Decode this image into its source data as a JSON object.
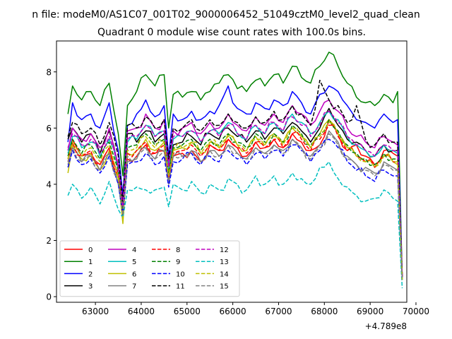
{
  "chart_data": {
    "type": "line",
    "suptitle": "n file: modeM0/AS1C07_001T02_9000006452_51049cztM0_level2_quad_clean",
    "title": "Quadrant 0 module wise count rates with 100.0s bins.",
    "xlabel": "",
    "ylabel": "",
    "x_offset_label": "+4.789e8",
    "xlim": [
      62150,
      69800
    ],
    "ylim": [
      -0.2,
      9.1
    ],
    "xticks": [
      63000,
      64000,
      65000,
      66000,
      67000,
      68000,
      69000,
      70000
    ],
    "yticks": [
      0,
      2,
      4,
      6,
      8
    ],
    "grid": false,
    "legend_position": "lower-left",
    "legend_columns": 4,
    "x_start": 62400,
    "x_step": 100,
    "x_end": 69700,
    "anchor_x": [
      62400,
      62500,
      62700,
      62900,
      63100,
      63300,
      63500,
      63600,
      63700,
      63900,
      64100,
      64300,
      64500,
      64600,
      64700,
      64900,
      65100,
      65300,
      65500,
      65700,
      65900,
      66100,
      66300,
      66500,
      66700,
      66900,
      67100,
      67300,
      67500,
      67700,
      67900,
      68100,
      68300,
      68500,
      68700,
      68900,
      69100,
      69300,
      69500,
      69600,
      69700
    ],
    "series": [
      {
        "name": "0",
        "color": "#ff0000",
        "dashed": false,
        "anchors": [
          4.9,
          5.6,
          5.0,
          5.1,
          4.7,
          5.3,
          4.4,
          3.1,
          4.9,
          5.0,
          5.4,
          5.1,
          5.2,
          4.3,
          5.0,
          5.1,
          5.2,
          4.8,
          5.4,
          5.2,
          5.6,
          5.3,
          5.0,
          5.5,
          5.3,
          5.6,
          5.3,
          5.8,
          5.5,
          5.2,
          5.4,
          6.3,
          5.8,
          5.2,
          5.4,
          5.0,
          4.7,
          5.2,
          5.1,
          5.0,
          0.8
        ]
      },
      {
        "name": "1",
        "color": "#008000",
        "dashed": false,
        "anchors": [
          6.5,
          7.5,
          7.0,
          7.3,
          6.8,
          7.6,
          5.8,
          4.3,
          6.8,
          7.3,
          7.9,
          7.5,
          7.9,
          6.0,
          7.2,
          7.1,
          7.3,
          7.0,
          7.3,
          7.6,
          7.9,
          7.4,
          7.3,
          7.7,
          7.5,
          7.9,
          7.6,
          8.2,
          7.8,
          7.6,
          8.2,
          8.7,
          8.2,
          7.6,
          7.1,
          6.9,
          6.8,
          7.2,
          6.9,
          7.3,
          0.7
        ]
      },
      {
        "name": "2",
        "color": "#0000ff",
        "dashed": false,
        "anchors": [
          5.5,
          6.9,
          6.3,
          6.5,
          6.0,
          6.9,
          5.2,
          3.6,
          6.1,
          6.5,
          7.0,
          6.4,
          6.8,
          5.0,
          6.5,
          6.3,
          6.6,
          6.3,
          6.6,
          6.8,
          7.5,
          6.7,
          6.5,
          6.9,
          6.7,
          7.0,
          6.8,
          7.3,
          6.9,
          6.5,
          7.2,
          7.5,
          7.3,
          6.8,
          6.3,
          6.2,
          6.0,
          6.5,
          6.2,
          6.3,
          0.7
        ]
      },
      {
        "name": "3",
        "color": "#000000",
        "dashed": false,
        "anchors": [
          5.6,
          6.0,
          5.5,
          5.8,
          5.1,
          5.9,
          4.6,
          3.2,
          5.8,
          5.5,
          5.9,
          5.5,
          5.8,
          4.4,
          5.4,
          5.5,
          5.7,
          5.4,
          5.8,
          5.6,
          6.0,
          5.7,
          5.5,
          5.9,
          5.6,
          6.0,
          5.8,
          6.2,
          5.9,
          5.5,
          6.0,
          6.7,
          6.1,
          5.6,
          5.5,
          5.2,
          5.0,
          5.4,
          5.2,
          5.2,
          0.7
        ]
      },
      {
        "name": "4",
        "color": "#bf00bf",
        "dashed": false,
        "anchors": [
          5.2,
          6.0,
          5.6,
          5.8,
          5.3,
          6.0,
          4.7,
          3.3,
          5.9,
          6.0,
          6.5,
          6.0,
          6.3,
          4.7,
          5.9,
          6.0,
          6.2,
          5.8,
          6.2,
          6.0,
          6.5,
          6.1,
          5.9,
          6.4,
          6.1,
          6.5,
          6.2,
          6.8,
          6.5,
          6.1,
          6.6,
          7.0,
          6.6,
          6.0,
          5.7,
          5.5,
          5.3,
          5.7,
          5.5,
          5.4,
          0.7
        ]
      },
      {
        "name": "5",
        "color": "#00bfbf",
        "dashed": false,
        "anchors": [
          5.1,
          5.7,
          5.3,
          5.5,
          5.0,
          5.6,
          4.5,
          3.0,
          5.5,
          5.6,
          6.1,
          5.7,
          5.9,
          4.5,
          5.6,
          5.7,
          5.9,
          5.5,
          5.9,
          5.8,
          6.2,
          5.8,
          5.6,
          6.1,
          5.8,
          6.2,
          5.9,
          6.5,
          6.2,
          5.8,
          6.2,
          6.6,
          6.3,
          5.7,
          5.4,
          5.2,
          5.0,
          5.4,
          5.2,
          5.1,
          0.6
        ]
      },
      {
        "name": "6",
        "color": "#bfbf00",
        "dashed": false,
        "anchors": [
          4.4,
          5.4,
          4.9,
          5.1,
          4.5,
          5.2,
          4.2,
          2.6,
          5.1,
          5.2,
          5.6,
          5.2,
          5.5,
          4.2,
          5.2,
          5.3,
          5.5,
          5.1,
          5.5,
          5.3,
          5.8,
          5.4,
          5.2,
          5.7,
          5.4,
          5.8,
          5.5,
          6.0,
          5.7,
          5.3,
          5.8,
          6.3,
          5.8,
          5.3,
          5.0,
          4.8,
          4.6,
          5.0,
          4.8,
          4.7,
          0.6
        ]
      },
      {
        "name": "7",
        "color": "#808080",
        "dashed": false,
        "anchors": [
          4.7,
          5.3,
          4.8,
          5.0,
          4.5,
          5.1,
          4.0,
          2.9,
          4.8,
          4.9,
          5.3,
          4.9,
          5.2,
          4.0,
          5.0,
          5.0,
          5.2,
          4.8,
          5.2,
          5.0,
          5.4,
          5.1,
          4.9,
          5.3,
          5.1,
          5.4,
          5.2,
          5.6,
          5.3,
          5.0,
          5.4,
          5.9,
          5.5,
          5.0,
          4.7,
          4.6,
          4.4,
          4.8,
          4.6,
          4.5,
          0.6
        ]
      },
      {
        "name": "8",
        "color": "#ff0000",
        "dashed": true,
        "anchors": [
          4.8,
          5.5,
          5.0,
          5.2,
          4.7,
          5.3,
          4.3,
          3.0,
          5.1,
          5.2,
          5.5,
          5.1,
          5.4,
          4.2,
          5.1,
          5.2,
          5.4,
          5.0,
          5.4,
          5.2,
          5.6,
          5.3,
          5.1,
          5.5,
          5.3,
          5.6,
          5.3,
          5.8,
          5.6,
          5.2,
          5.6,
          6.1,
          5.7,
          5.2,
          5.0,
          4.8,
          4.6,
          5.0,
          4.8,
          4.8,
          0.7
        ]
      },
      {
        "name": "9",
        "color": "#008000",
        "dashed": true,
        "anchors": [
          5.0,
          5.6,
          5.1,
          5.4,
          4.9,
          5.5,
          4.5,
          3.1,
          5.3,
          5.4,
          5.8,
          5.4,
          5.6,
          4.4,
          5.3,
          5.4,
          5.6,
          5.2,
          5.6,
          5.4,
          5.8,
          5.5,
          5.3,
          5.8,
          5.5,
          5.8,
          5.5,
          6.1,
          5.8,
          5.4,
          5.8,
          6.3,
          5.9,
          5.4,
          5.1,
          4.9,
          4.7,
          5.1,
          4.9,
          4.9,
          0.7
        ]
      },
      {
        "name": "10",
        "color": "#0000ff",
        "dashed": true,
        "anchors": [
          4.6,
          5.2,
          4.7,
          4.9,
          4.4,
          5.0,
          4.0,
          2.9,
          4.7,
          4.8,
          5.1,
          4.7,
          5.0,
          3.9,
          4.8,
          4.9,
          5.1,
          4.7,
          5.0,
          4.8,
          5.2,
          4.9,
          4.7,
          5.1,
          4.9,
          5.2,
          5.0,
          5.4,
          5.2,
          4.8,
          5.2,
          5.6,
          5.3,
          4.8,
          4.5,
          4.3,
          4.1,
          4.5,
          4.3,
          4.3,
          0.6
        ]
      },
      {
        "name": "11",
        "color": "#000000",
        "dashed": true,
        "anchors": [
          5.7,
          6.2,
          5.8,
          6.0,
          5.4,
          6.2,
          5.0,
          3.4,
          6.1,
          6.0,
          6.4,
          6.0,
          6.3,
          4.9,
          6.0,
          6.0,
          6.3,
          5.9,
          6.3,
          6.1,
          6.5,
          6.2,
          6.0,
          6.4,
          6.2,
          6.6,
          6.3,
          6.8,
          6.5,
          6.1,
          7.7,
          7.0,
          6.8,
          6.2,
          6.8,
          5.6,
          5.4,
          5.8,
          5.5,
          5.5,
          0.7
        ]
      },
      {
        "name": "12",
        "color": "#bf00bf",
        "dashed": true,
        "anchors": [
          5.3,
          5.8,
          5.4,
          5.6,
          5.1,
          5.7,
          4.6,
          3.2,
          5.6,
          5.7,
          6.1,
          5.7,
          5.9,
          4.6,
          5.7,
          5.7,
          5.9,
          5.5,
          5.9,
          5.7,
          6.1,
          5.8,
          5.6,
          6.1,
          5.8,
          6.2,
          5.9,
          6.4,
          6.1,
          5.7,
          6.1,
          6.6,
          6.2,
          5.7,
          5.4,
          5.2,
          5.0,
          5.4,
          5.2,
          5.2,
          0.7
        ]
      },
      {
        "name": "13",
        "color": "#00bfbf",
        "dashed": true,
        "anchors": [
          3.6,
          4.0,
          3.5,
          3.9,
          3.3,
          4.1,
          3.1,
          2.8,
          3.8,
          3.9,
          3.8,
          3.8,
          3.9,
          3.2,
          4.0,
          3.8,
          4.1,
          3.7,
          4.0,
          3.8,
          4.2,
          4.0,
          3.8,
          4.3,
          4.0,
          4.3,
          4.0,
          4.4,
          4.2,
          4.0,
          4.6,
          4.8,
          4.2,
          3.9,
          3.6,
          3.4,
          3.5,
          3.8,
          3.5,
          3.4,
          0.3
        ]
      },
      {
        "name": "14",
        "color": "#bfbf00",
        "dashed": true,
        "anchors": [
          4.9,
          5.5,
          5.0,
          5.3,
          4.8,
          5.4,
          4.3,
          2.7,
          5.2,
          5.3,
          5.7,
          5.3,
          5.5,
          4.3,
          5.2,
          5.3,
          5.5,
          5.1,
          5.5,
          5.3,
          5.7,
          5.4,
          5.2,
          5.6,
          5.4,
          5.7,
          5.4,
          6.0,
          5.7,
          5.3,
          5.7,
          6.2,
          5.8,
          5.3,
          5.0,
          4.8,
          4.6,
          5.0,
          4.8,
          4.8,
          0.6
        ]
      },
      {
        "name": "15",
        "color": "#808080",
        "dashed": true,
        "anchors": [
          4.8,
          5.3,
          4.8,
          5.0,
          4.5,
          5.1,
          4.1,
          2.9,
          5.0,
          5.0,
          5.3,
          4.9,
          5.2,
          4.1,
          5.0,
          5.0,
          5.2,
          4.8,
          5.2,
          5.0,
          5.4,
          5.1,
          4.9,
          5.3,
          5.1,
          5.4,
          5.1,
          5.6,
          5.3,
          4.9,
          5.3,
          5.8,
          5.4,
          4.9,
          4.7,
          4.5,
          4.3,
          4.7,
          4.5,
          4.5,
          0.6
        ]
      }
    ]
  }
}
